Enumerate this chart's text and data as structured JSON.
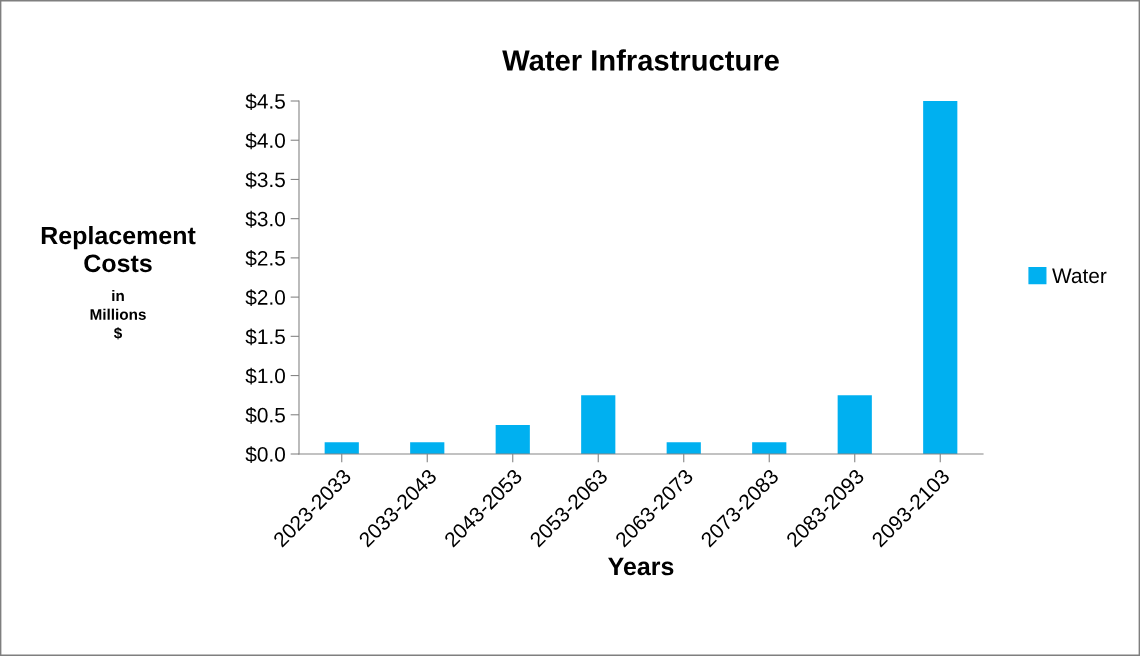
{
  "chart_data": {
    "type": "bar",
    "title": "Water Infrastructure",
    "xlabel": "Years",
    "ylabel": "Replacement Costs",
    "annotations": [
      "in Millions $"
    ],
    "categories": [
      "2023-2033",
      "2033-2043",
      "2043-2053",
      "2053-2063",
      "2063-2073",
      "2073-2083",
      "2083-2093",
      "2093-2103"
    ],
    "series": [
      {
        "name": "Water",
        "color": "#00b0f0",
        "values": [
          0.15,
          0.15,
          0.37,
          0.75,
          0.15,
          0.15,
          0.75,
          4.5
        ]
      }
    ],
    "ylim": [
      0,
      4.5
    ],
    "yticks": [
      {
        "value": 0,
        "label": "$0.0"
      },
      {
        "value": 0.5,
        "label": "$0.5"
      },
      {
        "value": 1,
        "label": "$1.0"
      },
      {
        "value": 1.5,
        "label": "$1.5"
      },
      {
        "value": 2,
        "label": "$2.0"
      },
      {
        "value": 2.5,
        "label": "$2.5"
      },
      {
        "value": 3,
        "label": "$3.0"
      },
      {
        "value": 3.5,
        "label": "$3.5"
      },
      {
        "value": 4,
        "label": "$4.0"
      },
      {
        "value": 4.5,
        "label": "$4.5"
      }
    ],
    "grid": false,
    "legend": "right"
  }
}
